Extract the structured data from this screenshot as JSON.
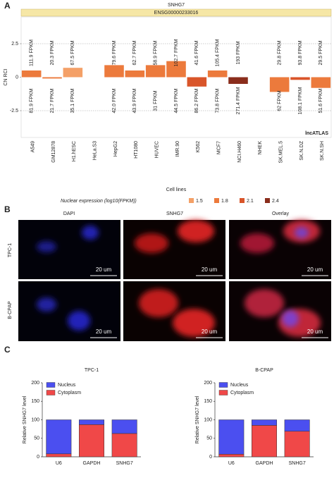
{
  "panel_labels": [
    "A",
    "B",
    "C"
  ],
  "micrographs": {
    "columns": [
      "DAPI",
      "SNHG7",
      "Overlay"
    ],
    "rows": [
      "TPC-1",
      "B-CPAP"
    ],
    "scale_bar": "20 um"
  },
  "chart_data": [
    {
      "type": "bar",
      "title": "SNHG7",
      "subtitle": "ENSG00000233016",
      "ylabel": "CN RCI",
      "xlabel": "Cell lines",
      "categories": [
        "A549",
        "GM12878",
        "H1.hESC",
        "HeLa.S3",
        "HepG2",
        "HT1080",
        "HUVEC",
        "IMR.90",
        "K562",
        "MCF7",
        "NCI.H460",
        "NHEK",
        "SK.MEL.5",
        "SK.N.DZ",
        "SK.N.SH"
      ],
      "values": [
        0.5,
        -0.1,
        0.7,
        null,
        0.9,
        0.5,
        0.9,
        1.2,
        -0.7,
        0.5,
        -0.5,
        null,
        -1.1,
        -0.2,
        -0.8
      ],
      "colors": [
        "#ec7a3c",
        "#ec7a3c",
        "#f4a067",
        "#ec7a3c",
        "#ec7a3c",
        "#ec7a3c",
        "#ec7a3c",
        "#ec7a3c",
        "#d9552a",
        "#ec7a3c",
        "#8a2d1c",
        "#ec7a3c",
        "#ec7a3c",
        "#d9552a",
        "#ec7a3c"
      ],
      "top_labels": [
        "111.9 FPKM",
        "20.3 FPKM",
        "67.5 FPKM",
        null,
        "79.6 FPKM",
        "62.7 FPKM",
        "58.9 FPKM",
        "102.7 FPKM",
        "41.6 FPKM",
        "105.4 FPKM",
        "193 FPKM",
        null,
        "29.8 FPKM",
        "93.8 FPKM",
        "29.5 FPKM"
      ],
      "bottom_labels": [
        "81.9 FPKM",
        "21.7 FPKM",
        "35.1 FPKM",
        null,
        "42.0 FPKM",
        "43.9 FPKM",
        "31 FPKM",
        "44.5 FPKM",
        "86.2 FPKM",
        "73.8 FPKM",
        "271.4 FPKM",
        null,
        "62 FPKM",
        "108.1 FPKM",
        "51.6 FPKM"
      ],
      "ylim": [
        -4.5,
        4.5
      ],
      "yticks": [
        -2.5,
        0,
        2.5
      ],
      "reference_lines": [
        -2.5,
        2.5
      ],
      "legend": {
        "title": "Nuclear expression (log10(FPKM))",
        "levels": [
          1.5,
          1.8,
          2.1,
          2.4
        ],
        "colors": [
          "#f4a067",
          "#ec7a3c",
          "#d9552a",
          "#8a2d1c"
        ]
      },
      "annotation": "lncATLAS"
    },
    {
      "type": "stacked_bar",
      "title": "TPC-1",
      "ylabel": "Relative SNHG7 level",
      "categories": [
        "U6",
        "GAPDH",
        "SNHG7"
      ],
      "series": [
        {
          "name": "Nucleus",
          "color": "#4b4ff0",
          "values": [
            92,
            13,
            37
          ]
        },
        {
          "name": "Cytoplasm",
          "color": "#f04848",
          "values": [
            8,
            87,
            63
          ]
        }
      ],
      "ylim": [
        0,
        200
      ],
      "yticks": [
        0,
        50,
        100,
        150,
        200
      ],
      "legend": "top-left"
    },
    {
      "type": "stacked_bar",
      "title": "B-CPAP",
      "ylabel": "Relative SNHG7 level",
      "categories": [
        "U6",
        "GAPDH",
        "SNHG7"
      ],
      "series": [
        {
          "name": "Nucleus",
          "color": "#4b4ff0",
          "values": [
            93,
            15,
            31
          ]
        },
        {
          "name": "Cytoplasm",
          "color": "#f04848",
          "values": [
            7,
            85,
            69
          ]
        }
      ],
      "ylim": [
        0,
        200
      ],
      "yticks": [
        0,
        50,
        100,
        150,
        200
      ],
      "legend": "top-left"
    }
  ]
}
